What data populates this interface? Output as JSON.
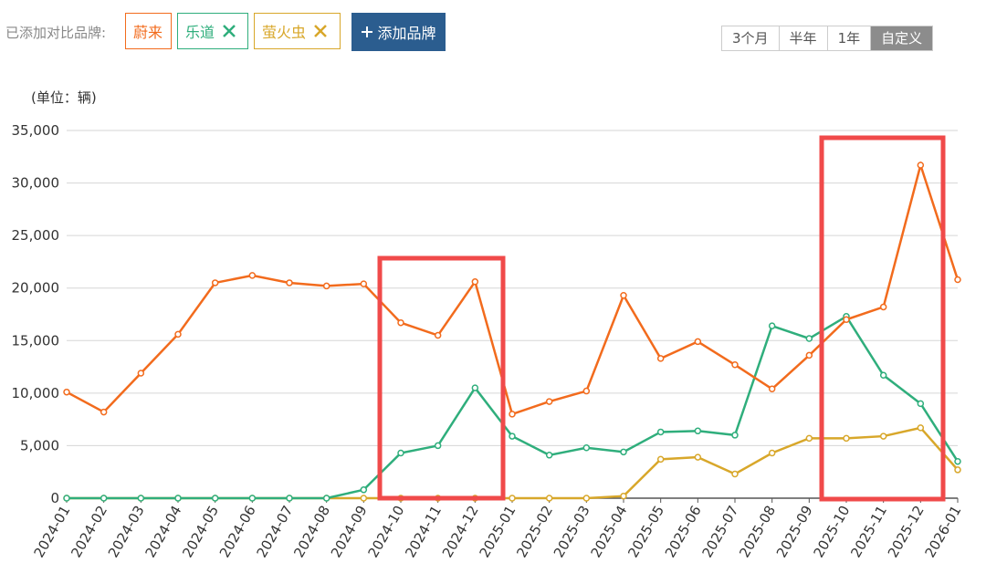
{
  "toolbar": {
    "label": "已添加对比品牌:",
    "add_button": "添加品牌",
    "ranges": [
      "3个月",
      "半年",
      "1年",
      "自定义"
    ]
  },
  "chart_data": {
    "type": "line",
    "unit_label": "(单位：辆)",
    "categories": [
      "2024-01",
      "2024-02",
      "2024-03",
      "2024-04",
      "2024-05",
      "2024-06",
      "2024-07",
      "2024-08",
      "2024-09",
      "2024-10",
      "2024-11",
      "2024-12",
      "2025-01",
      "2025-02",
      "2025-03",
      "2025-04",
      "2025-05",
      "2025-06",
      "2025-07",
      "2025-08",
      "2025-09",
      "2025-10",
      "2025-11",
      "2025-12",
      "2026-01"
    ],
    "series": [
      {
        "name": "蔚来",
        "color": "#f26b1d",
        "values": [
          10100,
          8200,
          11900,
          15600,
          20500,
          21200,
          20500,
          20200,
          20400,
          16700,
          15500,
          20600,
          8000,
          9200,
          10200,
          19300,
          13300,
          14900,
          12700,
          10400,
          13600,
          17000,
          18200,
          31700,
          20800
        ]
      },
      {
        "name": "乐道",
        "color": "#2fae7c",
        "values": [
          0,
          0,
          0,
          0,
          0,
          0,
          0,
          0,
          800,
          4300,
          5000,
          10500,
          5900,
          4100,
          4800,
          4400,
          6300,
          6400,
          6000,
          16400,
          15200,
          17300,
          11700,
          9000,
          3500
        ]
      },
      {
        "name": "萤火虫",
        "color": "#d8a72a",
        "values": [
          0,
          0,
          0,
          0,
          0,
          0,
          0,
          0,
          0,
          0,
          0,
          0,
          0,
          0,
          0,
          200,
          3700,
          3900,
          2300,
          4300,
          5700,
          5700,
          5900,
          6700,
          2700
        ]
      }
    ],
    "ylim": [
      0,
      35000
    ],
    "yticks": [
      0,
      {
        "value": 5000,
        "label": "5,000"
      },
      {
        "value": 10000,
        "label": "10,000"
      },
      {
        "value": 15000,
        "label": "15,000"
      },
      {
        "value": 20000,
        "label": "20,000"
      },
      {
        "value": 25000,
        "label": "25,000"
      },
      {
        "value": 30000,
        "label": "30,000"
      },
      {
        "value": 35000,
        "label": "35,000"
      }
    ],
    "grid": true
  }
}
